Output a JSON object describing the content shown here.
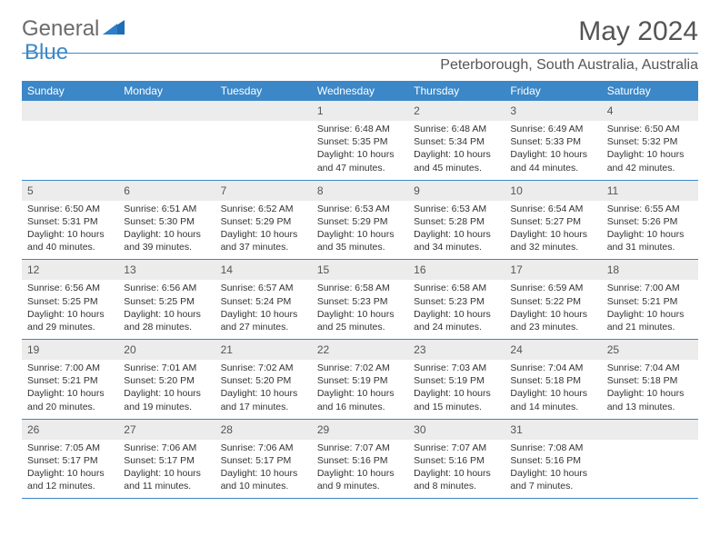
{
  "brand": {
    "name_part1": "General",
    "name_part2": "Blue",
    "text_color": "#6b6b6b",
    "accent_color": "#1f6db3"
  },
  "title": "May 2024",
  "location": "Peterborough, South Australia, Australia",
  "colors": {
    "header_bg": "#3c87c7",
    "header_text": "#ffffff",
    "divider": "#3c87c7",
    "daynum_bg": "#ececec",
    "text": "#333333",
    "muted": "#555555",
    "page_bg": "#ffffff"
  },
  "typography": {
    "title_fontsize": 30,
    "location_fontsize": 16,
    "dayhead_fontsize": 12,
    "daynum_fontsize": 12,
    "info_fontsize": 10.5
  },
  "day_headers": [
    "Sunday",
    "Monday",
    "Tuesday",
    "Wednesday",
    "Thursday",
    "Friday",
    "Saturday"
  ],
  "weeks": [
    [
      null,
      null,
      null,
      {
        "n": "1",
        "sr": "6:48 AM",
        "ss": "5:35 PM",
        "dl": "10 hours and 47 minutes."
      },
      {
        "n": "2",
        "sr": "6:48 AM",
        "ss": "5:34 PM",
        "dl": "10 hours and 45 minutes."
      },
      {
        "n": "3",
        "sr": "6:49 AM",
        "ss": "5:33 PM",
        "dl": "10 hours and 44 minutes."
      },
      {
        "n": "4",
        "sr": "6:50 AM",
        "ss": "5:32 PM",
        "dl": "10 hours and 42 minutes."
      }
    ],
    [
      {
        "n": "5",
        "sr": "6:50 AM",
        "ss": "5:31 PM",
        "dl": "10 hours and 40 minutes."
      },
      {
        "n": "6",
        "sr": "6:51 AM",
        "ss": "5:30 PM",
        "dl": "10 hours and 39 minutes."
      },
      {
        "n": "7",
        "sr": "6:52 AM",
        "ss": "5:29 PM",
        "dl": "10 hours and 37 minutes."
      },
      {
        "n": "8",
        "sr": "6:53 AM",
        "ss": "5:29 PM",
        "dl": "10 hours and 35 minutes."
      },
      {
        "n": "9",
        "sr": "6:53 AM",
        "ss": "5:28 PM",
        "dl": "10 hours and 34 minutes."
      },
      {
        "n": "10",
        "sr": "6:54 AM",
        "ss": "5:27 PM",
        "dl": "10 hours and 32 minutes."
      },
      {
        "n": "11",
        "sr": "6:55 AM",
        "ss": "5:26 PM",
        "dl": "10 hours and 31 minutes."
      }
    ],
    [
      {
        "n": "12",
        "sr": "6:56 AM",
        "ss": "5:25 PM",
        "dl": "10 hours and 29 minutes."
      },
      {
        "n": "13",
        "sr": "6:56 AM",
        "ss": "5:25 PM",
        "dl": "10 hours and 28 minutes."
      },
      {
        "n": "14",
        "sr": "6:57 AM",
        "ss": "5:24 PM",
        "dl": "10 hours and 27 minutes."
      },
      {
        "n": "15",
        "sr": "6:58 AM",
        "ss": "5:23 PM",
        "dl": "10 hours and 25 minutes."
      },
      {
        "n": "16",
        "sr": "6:58 AM",
        "ss": "5:23 PM",
        "dl": "10 hours and 24 minutes."
      },
      {
        "n": "17",
        "sr": "6:59 AM",
        "ss": "5:22 PM",
        "dl": "10 hours and 23 minutes."
      },
      {
        "n": "18",
        "sr": "7:00 AM",
        "ss": "5:21 PM",
        "dl": "10 hours and 21 minutes."
      }
    ],
    [
      {
        "n": "19",
        "sr": "7:00 AM",
        "ss": "5:21 PM",
        "dl": "10 hours and 20 minutes."
      },
      {
        "n": "20",
        "sr": "7:01 AM",
        "ss": "5:20 PM",
        "dl": "10 hours and 19 minutes."
      },
      {
        "n": "21",
        "sr": "7:02 AM",
        "ss": "5:20 PM",
        "dl": "10 hours and 17 minutes."
      },
      {
        "n": "22",
        "sr": "7:02 AM",
        "ss": "5:19 PM",
        "dl": "10 hours and 16 minutes."
      },
      {
        "n": "23",
        "sr": "7:03 AM",
        "ss": "5:19 PM",
        "dl": "10 hours and 15 minutes."
      },
      {
        "n": "24",
        "sr": "7:04 AM",
        "ss": "5:18 PM",
        "dl": "10 hours and 14 minutes."
      },
      {
        "n": "25",
        "sr": "7:04 AM",
        "ss": "5:18 PM",
        "dl": "10 hours and 13 minutes."
      }
    ],
    [
      {
        "n": "26",
        "sr": "7:05 AM",
        "ss": "5:17 PM",
        "dl": "10 hours and 12 minutes."
      },
      {
        "n": "27",
        "sr": "7:06 AM",
        "ss": "5:17 PM",
        "dl": "10 hours and 11 minutes."
      },
      {
        "n": "28",
        "sr": "7:06 AM",
        "ss": "5:17 PM",
        "dl": "10 hours and 10 minutes."
      },
      {
        "n": "29",
        "sr": "7:07 AM",
        "ss": "5:16 PM",
        "dl": "10 hours and 9 minutes."
      },
      {
        "n": "30",
        "sr": "7:07 AM",
        "ss": "5:16 PM",
        "dl": "10 hours and 8 minutes."
      },
      {
        "n": "31",
        "sr": "7:08 AM",
        "ss": "5:16 PM",
        "dl": "10 hours and 7 minutes."
      },
      null
    ]
  ],
  "labels": {
    "sunrise": "Sunrise:",
    "sunset": "Sunset:",
    "daylight": "Daylight:"
  }
}
